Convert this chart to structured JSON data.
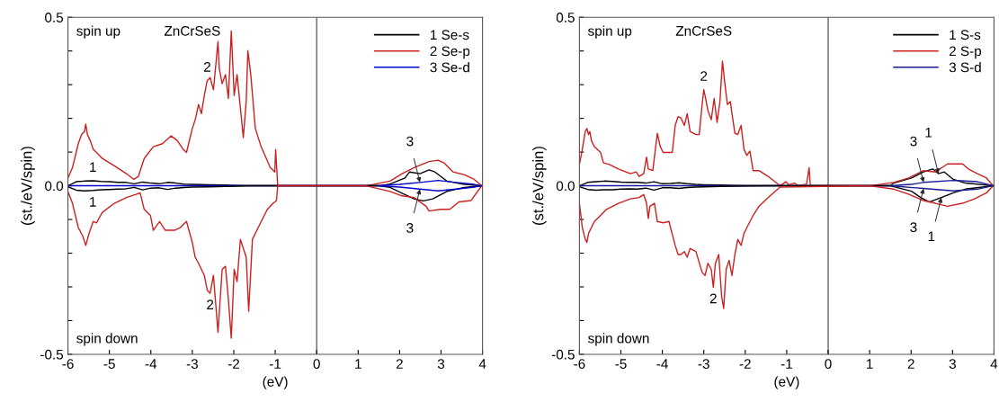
{
  "chart_data": [
    {
      "type": "line",
      "title": "ZnCrSeS",
      "xlabel": "(eV)",
      "ylabel": "(st./eV/spin)",
      "xlim": [
        -6,
        4
      ],
      "xticks": [
        -6,
        -5,
        -4,
        -3,
        -2,
        -1,
        0,
        1,
        2,
        3,
        4
      ],
      "ylim": [
        -0.5,
        0.5
      ],
      "yticks": [
        {
          "value": -0.5,
          "label": "-0.5"
        },
        {
          "value": -0.4,
          "label": null
        },
        {
          "value": -0.3,
          "label": null
        },
        {
          "value": -0.2,
          "label": null
        },
        {
          "value": -0.1,
          "label": null
        },
        {
          "value": 0,
          "label": "0.0"
        },
        {
          "value": 0.1,
          "label": null
        },
        {
          "value": 0.2,
          "label": null
        },
        {
          "value": 0.3,
          "label": null
        },
        {
          "value": 0.4,
          "label": null
        },
        {
          "value": 0.5,
          "label": "0.5"
        }
      ],
      "legend": "top right",
      "grid": false,
      "ref_lines": [
        {
          "axis": "x",
          "value": 0,
          "color": "#555555"
        }
      ],
      "annotations": [
        "spin up",
        "spin down",
        {
          "text": "1",
          "x": -5.4,
          "y": 0.015
        },
        {
          "text": "1",
          "x": -5.4,
          "y": -0.014
        },
        {
          "text": "2",
          "x": -2.64,
          "y": 0.312
        },
        {
          "text": "2",
          "x": -2.57,
          "y": -0.319
        },
        {
          "text": "3",
          "x": 2.49,
          "y": 0.01
        },
        {
          "text": "3",
          "x": 2.49,
          "y": -0.01
        }
      ],
      "series": [
        {
          "name": "1 Se-s",
          "color": "#000000",
          "x": [
            -6,
            -5.8,
            -5.6,
            -5.4,
            -5.2,
            -5.0,
            -4.8,
            -4.6,
            -4.4,
            -4.2,
            -4.0,
            -3.8,
            -3.6,
            -3.4,
            -3.2,
            -3.0,
            -2.6,
            -2.2,
            -1.5,
            1.5,
            1.77,
            2.13,
            2.24,
            2.49,
            2.71,
            2.85,
            3.14,
            3.51,
            3.98
          ],
          "values": [
            0,
            0.012,
            0.014,
            0.015,
            0.013,
            0.012,
            0.01,
            0.01,
            0.006,
            0.011,
            0.008,
            0.006,
            0.01,
            0.008,
            0.005,
            0.004,
            0.003,
            0.002,
            0,
            0,
            0.005,
            0.023,
            0.041,
            0.036,
            0.047,
            0.041,
            0.014,
            0.005,
            0
          ]
        },
        {
          "name": "2 Se-p",
          "color": "#cc2020",
          "x": [
            -6.0,
            -5.89,
            -5.75,
            -5.67,
            -5.6,
            -5.57,
            -5.53,
            -5.46,
            -5.39,
            -5.31,
            -5.17,
            -4.88,
            -4.59,
            -4.41,
            -4.3,
            -4.16,
            -3.94,
            -3.72,
            -3.51,
            -3.36,
            -3.22,
            -3.14,
            -3.0,
            -2.93,
            -2.85,
            -2.78,
            -2.71,
            -2.64,
            -2.57,
            -2.49,
            -2.38,
            -2.35,
            -2.28,
            -2.2,
            -2.13,
            -2.06,
            -1.99,
            -1.92,
            -1.77,
            -1.7,
            -1.66,
            -1.59,
            -1.48,
            -1.34,
            -1.12,
            -1.01,
            -0.99,
            -0.94,
            1.19,
            1.77,
            2.06,
            2.35,
            2.71,
            2.93,
            3.07,
            3.29,
            3.58,
            3.8,
            3.98
          ],
          "values": [
            0.023,
            0.054,
            0.125,
            0.152,
            0.161,
            0.183,
            0.152,
            0.134,
            0.108,
            0.099,
            0.081,
            0.059,
            0.036,
            0.019,
            0.028,
            0.081,
            0.116,
            0.125,
            0.148,
            0.134,
            0.108,
            0.099,
            0.17,
            0.196,
            0.241,
            0.214,
            0.268,
            0.312,
            0.321,
            0.285,
            0.428,
            0.348,
            0.303,
            0.33,
            0.259,
            0.459,
            0.268,
            0.33,
            0.143,
            0.25,
            0.401,
            0.33,
            0.17,
            0.116,
            0.054,
            0.041,
            0.108,
            0,
            0,
            0.014,
            0.036,
            0.054,
            0.072,
            0.076,
            0.068,
            0.041,
            0.032,
            0.019,
            0
          ]
        },
        {
          "name": "3 Se-d",
          "color": "#0000cc",
          "x": [
            -6,
            1.5,
            2.0,
            2.49,
            2.93,
            3.36,
            3.8,
            3.98
          ],
          "values": [
            0,
            0,
            0.004,
            0.01,
            0.016,
            0.01,
            0.004,
            0
          ]
        },
        {
          "color": "#000000",
          "x": [
            -6,
            -5.8,
            -5.6,
            -5.4,
            -5.2,
            -5.0,
            -4.8,
            -4.6,
            -4.4,
            -4.2,
            -4.0,
            -3.8,
            -3.6,
            -3.4,
            -3.2,
            -3.0,
            -2.6,
            -2.2,
            -1.5,
            1.5,
            1.77,
            2.13,
            2.35,
            2.57,
            2.8,
            3.14,
            3.51,
            3.98
          ],
          "values": [
            -0.003,
            -0.013,
            -0.015,
            -0.014,
            -0.012,
            -0.011,
            -0.01,
            -0.009,
            -0.005,
            -0.012,
            -0.007,
            -0.006,
            -0.011,
            -0.007,
            -0.005,
            -0.004,
            -0.003,
            -0.002,
            0,
            0,
            -0.005,
            -0.026,
            -0.039,
            -0.045,
            -0.039,
            -0.017,
            -0.006,
            0
          ]
        },
        {
          "color": "#cc2020",
          "x": [
            -6.0,
            -5.89,
            -5.75,
            -5.64,
            -5.57,
            -5.49,
            -5.39,
            -5.31,
            -5.17,
            -4.88,
            -4.59,
            -4.37,
            -4.26,
            -4.23,
            -4.16,
            -4.01,
            -3.94,
            -3.79,
            -3.65,
            -3.43,
            -3.29,
            -3.14,
            -3.0,
            -2.93,
            -2.85,
            -2.71,
            -2.64,
            -2.57,
            -2.49,
            -2.38,
            -2.28,
            -2.2,
            -2.13,
            -2.06,
            -1.99,
            -1.92,
            -1.84,
            -1.7,
            -1.64,
            -1.55,
            -1.41,
            -1.19,
            -1.05,
            -0.97,
            -0.94,
            1.19,
            1.77,
            2.06,
            2.35,
            2.64,
            2.71,
            2.99,
            3.21,
            3.43,
            3.72,
            3.98
          ],
          "values": [
            -0.017,
            -0.052,
            -0.124,
            -0.15,
            -0.177,
            -0.141,
            -0.106,
            -0.11,
            -0.079,
            -0.052,
            -0.035,
            -0.026,
            -0.021,
            -0.035,
            -0.07,
            -0.088,
            -0.132,
            -0.106,
            -0.132,
            -0.132,
            -0.124,
            -0.106,
            -0.168,
            -0.212,
            -0.23,
            -0.266,
            -0.31,
            -0.319,
            -0.266,
            -0.435,
            -0.248,
            -0.239,
            -0.337,
            -0.452,
            -0.248,
            -0.284,
            -0.159,
            -0.212,
            -0.372,
            -0.159,
            -0.124,
            -0.07,
            -0.052,
            -0.044,
            0,
            0,
            -0.017,
            -0.03,
            -0.035,
            -0.061,
            -0.075,
            -0.07,
            -0.07,
            -0.048,
            -0.044,
            0
          ]
        },
        {
          "color": "#0000cc",
          "x": [
            1.5,
            2.0,
            2.49,
            2.93,
            3.36,
            3.8,
            3.98
          ],
          "values": [
            0,
            -0.004,
            -0.01,
            -0.015,
            -0.01,
            -0.004,
            0
          ]
        }
      ]
    },
    {
      "type": "line",
      "title": "ZnCrSeS",
      "xlabel": "(eV)",
      "ylabel": "(st./eV/spin)",
      "xlim": [
        -6,
        4
      ],
      "xticks": [
        -6,
        -5,
        -4,
        -3,
        -2,
        -1,
        0,
        1,
        2,
        3,
        4
      ],
      "ylim": [
        -0.5,
        0.5
      ],
      "yticks": [
        {
          "value": -0.5,
          "label": "-0.5"
        },
        {
          "value": -0.4,
          "label": null
        },
        {
          "value": -0.3,
          "label": null
        },
        {
          "value": -0.2,
          "label": null
        },
        {
          "value": -0.1,
          "label": null
        },
        {
          "value": 0,
          "label": "0.0"
        },
        {
          "value": 0.1,
          "label": null
        },
        {
          "value": 0.2,
          "label": null
        },
        {
          "value": 0.3,
          "label": null
        },
        {
          "value": 0.4,
          "label": null
        },
        {
          "value": 0.5,
          "label": "0.5"
        }
      ],
      "legend": "top right",
      "grid": false,
      "ref_lines": [
        {
          "axis": "x",
          "value": 0,
          "color": "#555555"
        }
      ],
      "annotations": [
        "spin up",
        "spin down",
        {
          "text": "2",
          "x": -3.0,
          "y": 0.285
        },
        {
          "text": "2",
          "x": -2.77,
          "y": -0.301
        },
        {
          "text": "3",
          "x": 2.3,
          "y": 0.01
        },
        {
          "text": "1",
          "x": 2.66,
          "y": 0.036
        },
        {
          "text": "3",
          "x": 2.3,
          "y": -0.008
        },
        {
          "text": "1",
          "x": 2.73,
          "y": -0.035
        }
      ],
      "series": [
        {
          "name": "1 S-s",
          "color": "#000000",
          "x": [
            -6,
            -5.8,
            -5.6,
            -5.4,
            -5.2,
            -5.0,
            -4.8,
            -4.6,
            -4.4,
            -4.2,
            -4.0,
            -3.8,
            -3.6,
            -3.4,
            -3.2,
            -3.0,
            -2.6,
            -2.2,
            -1.5,
            1.5,
            1.58,
            2.01,
            2.3,
            2.52,
            2.66,
            2.8,
            3.02,
            3.31,
            3.98
          ],
          "values": [
            0,
            0.01,
            0.012,
            0.014,
            0.013,
            0.011,
            0.01,
            0.01,
            0.008,
            0.012,
            0.006,
            0.007,
            0.009,
            0.006,
            0.004,
            0.003,
            0.002,
            0.001,
            0,
            0,
            0.008,
            0.023,
            0.041,
            0.05,
            0.036,
            0.041,
            0.019,
            0.008,
            0
          ]
        },
        {
          "name": "2 S-p",
          "color": "#cc2020",
          "x": [
            -6.0,
            -5.93,
            -5.86,
            -5.82,
            -5.78,
            -5.75,
            -5.71,
            -5.64,
            -5.49,
            -5.42,
            -5.28,
            -5.06,
            -4.77,
            -4.63,
            -4.56,
            -4.45,
            -4.38,
            -4.34,
            -4.23,
            -4.16,
            -4.12,
            -4.05,
            -3.98,
            -3.76,
            -3.69,
            -3.62,
            -3.55,
            -3.47,
            -3.4,
            -3.33,
            -3.19,
            -3.11,
            -3.04,
            -3.0,
            -2.97,
            -2.9,
            -2.82,
            -2.75,
            -2.68,
            -2.61,
            -2.55,
            -2.5,
            -2.43,
            -2.36,
            -2.32,
            -2.25,
            -2.18,
            -2.1,
            -2.03,
            -1.96,
            -1.89,
            -1.81,
            -1.67,
            -1.45,
            -1.16,
            -1.02,
            -0.95,
            -0.81,
            -0.73,
            -0.52,
            -0.46,
            -0.43,
            1.0,
            1.58,
            1.94,
            2.3,
            2.59,
            2.88,
            3.24,
            3.38,
            3.6,
            3.82,
            3.98
          ],
          "values": [
            0.063,
            0.108,
            0.161,
            0.17,
            0.152,
            0.161,
            0.134,
            0.116,
            0.099,
            0.068,
            0.063,
            0.05,
            0.036,
            0.041,
            0.028,
            0.036,
            0.085,
            0.05,
            0.045,
            0.116,
            0.156,
            0.116,
            0.099,
            0.099,
            0.179,
            0.205,
            0.201,
            0.179,
            0.214,
            0.161,
            0.152,
            0.152,
            0.241,
            0.285,
            0.268,
            0.223,
            0.196,
            0.259,
            0.188,
            0.25,
            0.37,
            0.312,
            0.241,
            0.25,
            0.214,
            0.156,
            0.152,
            0.179,
            0.108,
            0.09,
            0.103,
            0.045,
            0.045,
            0.028,
            0,
            0.012,
            0.003,
            0.008,
            0,
            0.005,
            0.054,
            0,
            0,
            0.01,
            0.023,
            0.045,
            0.041,
            0.065,
            0.065,
            0.05,
            0.036,
            0.023,
            0
          ]
        },
        {
          "name": "3 S-d",
          "color": "#1a1a99",
          "x": [
            -6,
            1.5,
            2.0,
            2.3,
            3.02,
            3.6,
            3.98
          ],
          "values": [
            0,
            0,
            0.004,
            0.01,
            0.016,
            0.012,
            0
          ]
        },
        {
          "color": "#000000",
          "x": [
            -6,
            -5.8,
            -5.6,
            -5.4,
            -5.2,
            -5.0,
            -4.8,
            -4.6,
            -4.4,
            -4.2,
            -4.0,
            -3.8,
            -3.6,
            -3.4,
            -3.2,
            -3.0,
            -2.6,
            -2.2,
            -1.5,
            1.5,
            2.01,
            2.23,
            2.44,
            2.73,
            3.02,
            3.31,
            3.98
          ],
          "values": [
            -0.003,
            -0.011,
            -0.013,
            -0.012,
            -0.012,
            -0.01,
            -0.009,
            -0.01,
            -0.007,
            -0.013,
            -0.006,
            -0.006,
            -0.008,
            -0.005,
            -0.004,
            -0.003,
            -0.002,
            -0.001,
            0,
            0,
            -0.016,
            -0.035,
            -0.048,
            -0.035,
            -0.021,
            -0.01,
            0
          ]
        },
        {
          "color": "#cc2020",
          "x": [
            -6.0,
            -5.93,
            -5.86,
            -5.82,
            -5.78,
            -5.71,
            -5.64,
            -5.49,
            -5.35,
            -5.06,
            -4.77,
            -4.56,
            -4.45,
            -4.38,
            -4.34,
            -4.3,
            -4.19,
            -4.12,
            -3.98,
            -3.84,
            -3.69,
            -3.62,
            -3.55,
            -3.47,
            -3.4,
            -3.33,
            -3.19,
            -3.04,
            -2.97,
            -2.9,
            -2.82,
            -2.77,
            -2.72,
            -2.64,
            -2.57,
            -2.52,
            -2.46,
            -2.39,
            -2.32,
            -2.25,
            -2.18,
            -2.1,
            -2.03,
            -1.96,
            -1.81,
            -1.67,
            -1.45,
            -1.16,
            1.0,
            1.58,
            1.94,
            2.3,
            2.59,
            2.88,
            3.24,
            3.53,
            3.82,
            3.98
          ],
          "values": [
            -0.052,
            -0.124,
            -0.159,
            -0.168,
            -0.141,
            -0.124,
            -0.106,
            -0.088,
            -0.07,
            -0.052,
            -0.039,
            -0.035,
            -0.026,
            -0.052,
            -0.097,
            -0.061,
            -0.052,
            -0.106,
            -0.11,
            -0.106,
            -0.177,
            -0.204,
            -0.204,
            -0.195,
            -0.212,
            -0.186,
            -0.195,
            -0.257,
            -0.266,
            -0.23,
            -0.248,
            -0.301,
            -0.23,
            -0.204,
            -0.328,
            -0.364,
            -0.248,
            -0.221,
            -0.266,
            -0.204,
            -0.159,
            -0.177,
            -0.141,
            -0.124,
            -0.088,
            -0.061,
            -0.035,
            -0.004,
            0,
            -0.01,
            -0.025,
            -0.044,
            -0.052,
            -0.061,
            -0.052,
            -0.039,
            -0.021,
            0
          ]
        },
        {
          "color": "#1a1a99",
          "x": [
            1.5,
            2.3,
            3.02,
            3.6,
            3.98
          ],
          "values": [
            0,
            -0.008,
            -0.015,
            -0.01,
            0
          ]
        }
      ]
    }
  ]
}
